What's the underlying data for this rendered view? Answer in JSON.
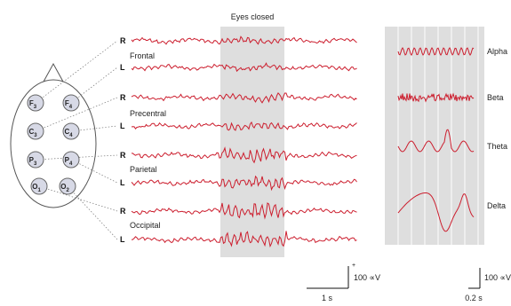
{
  "eyes_closed_label": "Eyes closed",
  "side_right": "R",
  "side_left": "L",
  "regions": [
    {
      "label": "Frontal",
      "amp": 0.35
    },
    {
      "label": "Precentral",
      "amp": 0.6
    },
    {
      "label": "Parietal",
      "amp": 1.6
    },
    {
      "label": "Occipital",
      "amp": 2.0
    }
  ],
  "electrodes": [
    {
      "label": "F3"
    },
    {
      "label": "F4"
    },
    {
      "label": "C3"
    },
    {
      "label": "C4"
    },
    {
      "label": "P3"
    },
    {
      "label": "P4"
    },
    {
      "label": "O1"
    },
    {
      "label": "O2"
    }
  ],
  "bands": [
    "Alpha",
    "Beta",
    "Theta",
    "Delta"
  ],
  "scale_left": {
    "voltage": "100 ∝V",
    "time": "1 s"
  },
  "scale_right": {
    "voltage": "100 ∝V",
    "time": "0.2 s"
  },
  "colors": {
    "trace": "#cc1e2e",
    "shade": "#dedede",
    "electrode": "#d7d9e6",
    "head": "#555555"
  }
}
